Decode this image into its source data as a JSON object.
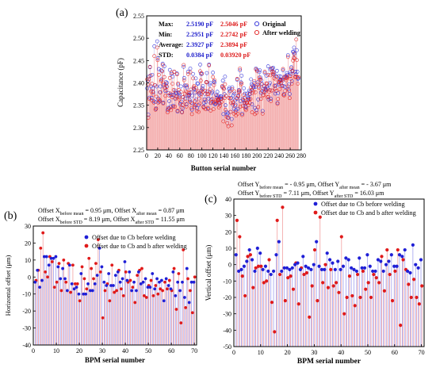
{
  "chart_data": [
    {
      "type": "scatter",
      "panel_label": "(a)",
      "xlabel": "Button serial number",
      "ylabel": "Capacitance (pF)",
      "xlim": [
        0,
        280
      ],
      "ylim": [
        2.25,
        2.55
      ],
      "xticks": [
        "0",
        "20",
        "40",
        "60",
        "80",
        "100",
        "120",
        "140",
        "160",
        "180",
        "200",
        "220",
        "240",
        "260",
        "280"
      ],
      "yticks": [
        "2.25",
        "2.30",
        "2.35",
        "2.40",
        "2.45",
        "2.50",
        "2.55"
      ],
      "stats_box": {
        "rows": [
          {
            "label": "Max:",
            "before": "2.5190 pF",
            "after": "2.5046 pF"
          },
          {
            "label": "Min:",
            "before": "2.2951 pF",
            "after": "2.2742 pF"
          },
          {
            "label": "Average:",
            "before": "2.3927 pF",
            "after": "2.3894 pF"
          },
          {
            "label": "STD:",
            "before": "0.0384 pF",
            "after": "0.03920 pF"
          }
        ]
      },
      "legend": [
        "Original",
        "After welding"
      ],
      "colors": {
        "original": "#2a2ad8",
        "after": "#e21c1c",
        "stem": "#f2a0a0"
      },
      "series": [
        {
          "name": "Original",
          "x_start": 1,
          "x_step": 1,
          "values": [
            2.388,
            2.404,
            2.329,
            2.414,
            2.367,
            2.435,
            2.416,
            2.392,
            2.366,
            2.418,
            2.388,
            2.379,
            2.359,
            2.482,
            2.395,
            2.357,
            2.342,
            2.392,
            2.493,
            2.455,
            2.365,
            2.431,
            2.358,
            2.379,
            2.392,
            2.428,
            2.408,
            2.426,
            2.443,
            2.356,
            2.395,
            2.437,
            2.389,
            2.382,
            2.402,
            2.393,
            2.4,
            2.339,
            2.344,
            2.377,
            2.359,
            2.429,
            2.372,
            2.347,
            2.42,
            2.373,
            2.414,
            2.349,
            2.373,
            2.425,
            2.365,
            2.383,
            2.379,
            2.377,
            2.421,
            2.336,
            2.396,
            2.378,
            2.37,
            2.374,
            2.352,
            2.392,
            2.358,
            2.335,
            2.343,
            2.368,
            2.436,
            2.411,
            2.394,
            2.365,
            2.394,
            2.352,
            2.39,
            2.372,
            2.425,
            2.372,
            2.374,
            2.362,
            2.432,
            2.379,
            2.356,
            2.34,
            2.371,
            2.42,
            2.387,
            2.386,
            2.35,
            2.378,
            2.41,
            2.363,
            2.343,
            2.399,
            2.398,
            2.35,
            2.377,
            2.374,
            2.441,
            2.421,
            2.383,
            2.42,
            2.388,
            2.393,
            2.347,
            2.356,
            2.364,
            2.375,
            2.357,
            2.402,
            2.422,
            2.381,
            2.342,
            2.365,
            2.441,
            2.396,
            2.4,
            2.355,
            2.362,
            2.377,
            2.38,
            2.423,
            2.356,
            2.403,
            2.401,
            2.352,
            2.353,
            2.373,
            2.367,
            2.38,
            2.371,
            2.363,
            2.358,
            2.354,
            2.367,
            2.37,
            2.369,
            2.365,
            2.391,
            2.405,
            2.33,
            2.387,
            2.375,
            2.414,
            2.35,
            2.371,
            2.335,
            2.329,
            2.332,
            2.322,
            2.386,
            2.389,
            2.382,
            2.335,
            2.366,
            2.319,
            2.39,
            2.351,
            2.372,
            2.342,
            2.376,
            2.361,
            2.351,
            2.339,
            2.364,
            2.407,
            2.342,
            2.37,
            2.384,
            2.38,
            2.428,
            2.359,
            2.401,
            2.416,
            2.331,
            2.364,
            2.361,
            2.388,
            2.356,
            2.376,
            2.347,
            2.345,
            2.356,
            2.376,
            2.369,
            2.366,
            2.364,
            2.383,
            2.375,
            2.381,
            2.408,
            2.397,
            2.352,
            2.394,
            2.39,
            2.391,
            2.4,
            2.344,
            2.391,
            2.432,
            2.339,
            2.429,
            2.401,
            2.363,
            2.392,
            2.424,
            2.428,
            2.412,
            2.378,
            2.406,
            2.398,
            2.337,
            2.387,
            2.379,
            2.393,
            2.422,
            2.387,
            2.384,
            2.416,
            2.392,
            2.387,
            2.437,
            2.363,
            2.396,
            2.4,
            2.43,
            2.364,
            2.432,
            2.383,
            2.432,
            2.434,
            2.424,
            2.419,
            2.393,
            2.376,
            2.415,
            2.394,
            2.427,
            2.355,
            2.377,
            2.397,
            2.415,
            2.405,
            2.407,
            2.414,
            2.407,
            2.394,
            2.405,
            2.428,
            2.393,
            2.375,
            2.412,
            2.391,
            2.415,
            2.413,
            2.422,
            2.418,
            2.462,
            2.386,
            2.397,
            2.375,
            2.424,
            2.42,
            2.435,
            2.404,
            2.427,
            2.47,
            2.469,
            2.479,
            2.466,
            2.425,
            2.419,
            2.519,
            2.473,
            2.425,
            2.409,
            2.41
          ]
        },
        {
          "name": "After welding",
          "x_start": 1,
          "x_step": 1,
          "values": [
            2.408,
            2.397,
            2.322,
            2.408,
            2.364,
            2.436,
            2.416,
            2.381,
            2.361,
            2.398,
            2.381,
            2.374,
            2.356,
            2.46,
            2.395,
            2.34,
            2.343,
            2.369,
            2.479,
            2.451,
            2.356,
            2.418,
            2.362,
            2.36,
            2.379,
            2.404,
            2.406,
            2.426,
            2.44,
            2.354,
            2.398,
            2.413,
            2.389,
            2.371,
            2.398,
            2.384,
            2.391,
            2.334,
            2.341,
            2.372,
            2.343,
            2.411,
            2.376,
            2.339,
            2.423,
            2.368,
            2.398,
            2.346,
            2.384,
            2.425,
            2.347,
            2.376,
            2.365,
            2.369,
            2.419,
            2.338,
            2.399,
            2.384,
            2.363,
            2.367,
            2.355,
            2.38,
            2.345,
            2.334,
            2.35,
            2.368,
            2.44,
            2.406,
            2.376,
            2.358,
            2.381,
            2.347,
            2.394,
            2.379,
            2.42,
            2.371,
            2.377,
            2.358,
            2.424,
            2.385,
            2.343,
            2.33,
            2.353,
            2.41,
            2.39,
            2.393,
            2.346,
            2.359,
            2.389,
            2.351,
            2.337,
            2.379,
            2.382,
            2.335,
            2.365,
            2.354,
            2.426,
            2.405,
            2.375,
            2.421,
            2.385,
            2.38,
            2.346,
            2.344,
            2.361,
            2.382,
            2.341,
            2.401,
            2.402,
            2.375,
            2.344,
            2.375,
            2.439,
            2.379,
            2.386,
            2.338,
            2.355,
            2.358,
            2.364,
            2.413,
            2.341,
            2.395,
            2.406,
            2.357,
            2.355,
            2.361,
            2.371,
            2.362,
            2.36,
            2.362,
            2.345,
            2.355,
            2.349,
            2.365,
            2.365,
            2.357,
            2.393,
            2.389,
            2.314,
            2.387,
            2.366,
            2.397,
            2.34,
            2.371,
            2.324,
            2.31,
            2.322,
            2.303,
            2.366,
            2.379,
            2.365,
            2.335,
            2.355,
            2.305,
            2.386,
            2.355,
            2.357,
            2.331,
            2.381,
            2.349,
            2.334,
            2.327,
            2.366,
            2.409,
            2.331,
            2.372,
            2.38,
            2.383,
            2.432,
            2.347,
            2.396,
            2.399,
            2.328,
            2.348,
            2.361,
            2.373,
            2.366,
            2.355,
            2.342,
            2.339,
            2.356,
            2.355,
            2.362,
            2.35,
            2.362,
            2.375,
            2.355,
            2.364,
            2.39,
            2.384,
            2.334,
            2.377,
            2.381,
            2.394,
            2.404,
            2.33,
            2.379,
            2.43,
            2.333,
            2.426,
            2.397,
            2.346,
            2.389,
            2.412,
            2.407,
            2.408,
            2.364,
            2.397,
            2.382,
            2.331,
            2.372,
            2.373,
            2.392,
            2.425,
            2.381,
            2.385,
            2.399,
            2.398,
            2.368,
            2.418,
            2.369,
            2.38,
            2.384,
            2.417,
            2.359,
            2.432,
            2.383,
            2.425,
            2.419,
            2.423,
            2.41,
            2.394,
            2.387,
            2.408,
            2.382,
            2.413,
            2.353,
            2.364,
            2.401,
            2.402,
            2.386,
            2.405,
            2.399,
            2.406,
            2.393,
            2.408,
            2.431,
            2.373,
            2.372,
            2.414,
            2.382,
            2.411,
            2.406,
            2.41,
            2.414,
            2.458,
            2.392,
            2.383,
            2.366,
            2.415,
            2.409,
            2.432,
            2.398,
            2.426,
            2.45,
            2.456,
            2.465,
            2.455,
            2.413,
            2.414,
            2.497,
            2.451,
            2.412,
            2.398,
            2.413
          ]
        }
      ]
    },
    {
      "type": "scatter",
      "panel_label": "(b)",
      "xlabel": "BPM serial number",
      "ylabel": "Horizontal offset (μm)",
      "xlim": [
        0,
        71
      ],
      "ylim": [
        -40,
        30
      ],
      "xticks": [
        "0",
        "10",
        "20",
        "30",
        "40",
        "50",
        "60",
        "70"
      ],
      "yticks": [
        "-40",
        "-30",
        "-20",
        "-10",
        "0",
        "10",
        "20",
        "30"
      ],
      "annotation": {
        "line1": {
          "a": "Offset X",
          "a_sub": "before mean",
          "a_val": " = 0.95 μm, ",
          "b": "Offset X",
          "b_sub": "after mean",
          "b_val": " = 0.87 μm"
        },
        "line2": {
          "a": "Offset X",
          "a_sub": "before STD",
          "a_val": " = 8.19 μm, ",
          "b": "Offset X",
          "b_sub": "after STD",
          "b_val": " = 11.55 μm"
        }
      },
      "legend": [
        "Offset due to Cb before welding",
        "Offset due to Cb and b after welding"
      ],
      "colors": {
        "before": "#1f1fd6",
        "after": "#e01a1a",
        "stem_before": "#9a9aee",
        "stem_after": "#f29b9b"
      },
      "series": [
        {
          "name": "Offset due to Cb before welding",
          "x_start": 1,
          "x_step": 1,
          "values": [
            -3,
            4,
            -6,
            -2,
            12,
            12,
            7,
            11,
            11,
            12,
            6,
            -1,
            5,
            -1,
            -8,
            7,
            -4,
            -7,
            -6,
            -10,
            2,
            -10,
            -10,
            -4,
            -8,
            -8,
            -4,
            1,
            17,
            6,
            -3,
            -5,
            2,
            -5,
            -5,
            1,
            3,
            -3,
            -1,
            9,
            -2,
            3,
            -8,
            -3,
            -8,
            3,
            -4,
            -3,
            -1,
            -6,
            -6,
            2,
            -7,
            -1,
            -3,
            -2,
            -14,
            -1,
            -5,
            -7,
            3,
            -11,
            -3,
            -8,
            -3,
            -12,
            5,
            -15,
            -3,
            -3
          ]
        },
        {
          "name": "Offset due to Cb and b after welding",
          "x_start": 1,
          "x_step": 1,
          "values": [
            -2,
            4,
            17,
            26,
            3,
            0,
            12,
            9,
            -6,
            -3,
            8,
            -8,
            10,
            -3,
            8,
            -9,
            7,
            -4,
            -4,
            -14,
            6,
            -1,
            -7,
            11,
            5,
            -1,
            8,
            22,
            3,
            -24,
            -8,
            -4,
            -14,
            7,
            -9,
            -8,
            4,
            -7,
            -11,
            3,
            -3,
            -2,
            -6,
            -15,
            1,
            4,
            5,
            -11,
            -12,
            -5,
            -2,
            -11,
            -5,
            -10,
            -7,
            -8,
            -3,
            -7,
            -2,
            -8,
            5,
            -19,
            2,
            -27,
            16,
            -18,
            -1,
            -8,
            -21,
            0
          ]
        }
      ]
    },
    {
      "type": "scatter",
      "panel_label": "(c)",
      "xlabel": "BPM serial number",
      "ylabel": "Vertical offset (μm)",
      "xlim": [
        0,
        71
      ],
      "ylim": [
        -50,
        40
      ],
      "xticks": [
        "0",
        "10",
        "20",
        "30",
        "40",
        "50",
        "60",
        "70"
      ],
      "yticks": [
        "-50",
        "-40",
        "-30",
        "-20",
        "-10",
        "0",
        "10",
        "20",
        "30",
        "40"
      ],
      "annotation": {
        "line1": {
          "a": "Offset Y",
          "a_sub": "before mean",
          "a_val": " = - 0.95 μm, ",
          "b": "Offset Y",
          "b_sub": "after mean",
          "b_val": " = - 3.67 μm"
        },
        "line2": {
          "a": "Offset Y",
          "a_sub": "before STD",
          "a_val": " = 7.11 μm, ",
          "b": "Offset Y",
          "b_sub": "after STD",
          "b_val": " = 16.03 μm"
        }
      },
      "legend": [
        "Offset due to Cb before welding",
        "Offset due to Cb and b after welding"
      ],
      "colors": {
        "before": "#1f1fd6",
        "after": "#e01a1a",
        "stem_before": "#9a9aee",
        "stem_after": "#f29b9b"
      },
      "series": [
        {
          "name": "Offset due to Cb before welding",
          "x_start": 1,
          "x_step": 1,
          "values": [
            6,
            -4,
            -3,
            -1,
            2,
            9,
            3,
            -4,
            10,
            7,
            -3,
            -1,
            -4,
            -6,
            -4,
            6,
            14,
            -4,
            -2,
            -2,
            -3,
            -2,
            0,
            1,
            -3,
            5,
            -1,
            -2,
            -3,
            0,
            14,
            -1,
            -3,
            -3,
            7,
            3,
            1,
            -3,
            2,
            -3,
            -1,
            4,
            3,
            -2,
            -3,
            -4,
            4,
            -2,
            -2,
            6,
            -1,
            -4,
            -4,
            3,
            2,
            -4,
            0,
            2,
            6,
            -1,
            -1,
            6,
            5,
            9,
            -4,
            -5,
            12,
            0,
            -2,
            3
          ]
        },
        {
          "name": "Offset due to Cb and b after welding",
          "x_start": 1,
          "x_step": 1,
          "values": [
            27,
            17,
            -7,
            -19,
            5,
            6,
            -14,
            -2,
            -1,
            -1,
            -11,
            -10,
            3,
            -23,
            -41,
            27,
            -6,
            35,
            -22,
            -8,
            -7,
            -15,
            1,
            -24,
            -2,
            -6,
            -5,
            -32,
            -13,
            9,
            -22,
            29,
            -11,
            0,
            -14,
            -3,
            -13,
            -11,
            -17,
            17,
            -30,
            -20,
            -7,
            -19,
            -25,
            -6,
            -20,
            -4,
            -15,
            -11,
            -20,
            -6,
            -8,
            -11,
            5,
            -16,
            9,
            -6,
            -22,
            -4,
            9,
            -37,
            3,
            -3,
            -12,
            -20,
            -9,
            -20,
            -24,
            -13
          ]
        }
      ]
    }
  ]
}
